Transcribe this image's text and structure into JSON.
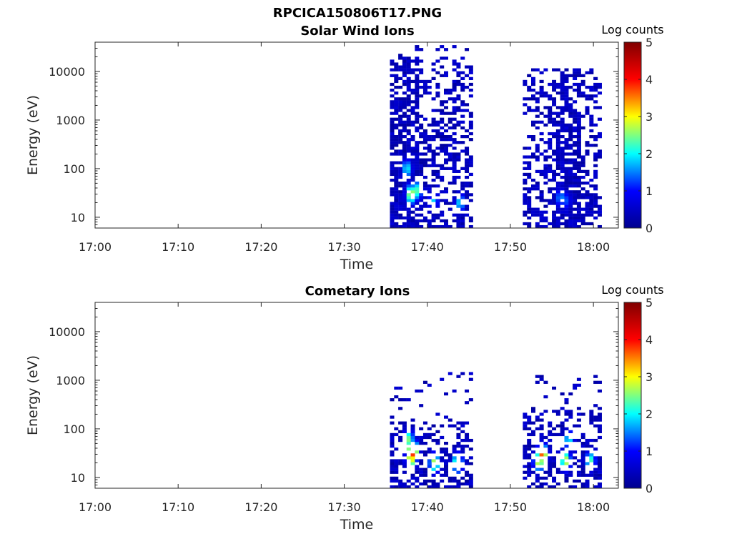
{
  "figure": {
    "title": "RPCICA150806T17.PNG"
  },
  "colormap": {
    "name": "jet",
    "stops": [
      "#00008f",
      "#0000ff",
      "#00ffff",
      "#ffff00",
      "#ff0000",
      "#800000"
    ]
  },
  "chart_data": [
    {
      "type": "heatmap",
      "title": "Solar Wind Ions",
      "xlabel": "Time",
      "ylabel": "Energy (eV)",
      "xlim": [
        "17:00",
        "18:03"
      ],
      "ylim": [
        6,
        40000
      ],
      "yscale": "log",
      "x_tick_labels": [
        "17:00",
        "17:10",
        "17:20",
        "17:30",
        "17:40",
        "17:50",
        "18:00"
      ],
      "y_tick_labels": [
        "10",
        "100",
        "1000",
        "10000"
      ],
      "colorbar": {
        "label": "Log counts",
        "min": 0,
        "max": 5,
        "tick_labels": [
          "0",
          "1",
          "2",
          "3",
          "4",
          "5"
        ]
      },
      "time_resolution_min": 0.5,
      "bursts": [
        {
          "start": "17:35.5",
          "end": "17:45.3",
          "dense_end": "17:38.5",
          "top_eV": 20000,
          "sparse_top_eV": 35000
        },
        {
          "start": "17:51.5",
          "end": "18:00.7",
          "dense_start": "17:55",
          "dense_end": "17:58",
          "top_eV": 12000
        }
      ],
      "hotspots": [
        {
          "time": "17:37.3",
          "energy_eV": 100,
          "log_counts": 2.0
        },
        {
          "time": "17:37.8",
          "energy_eV": 30,
          "log_counts": 2.9
        },
        {
          "time": "17:38.5",
          "energy_eV": 35,
          "log_counts": 2.3
        },
        {
          "time": "17:40.5",
          "energy_eV": 22,
          "log_counts": 1.8
        },
        {
          "time": "17:43.7",
          "energy_eV": 20,
          "log_counts": 1.9
        },
        {
          "time": "17:55.8",
          "energy_eV": 25,
          "log_counts": 1.6
        },
        {
          "time": "17:56.5",
          "energy_eV": 22,
          "log_counts": 1.3
        }
      ]
    },
    {
      "type": "heatmap",
      "title": "Cometary Ions",
      "xlabel": "Time",
      "ylabel": "Energy (eV)",
      "xlim": [
        "17:00",
        "18:03"
      ],
      "ylim": [
        6,
        40000
      ],
      "yscale": "log",
      "x_tick_labels": [
        "17:00",
        "17:10",
        "17:20",
        "17:30",
        "17:40",
        "17:50",
        "18:00"
      ],
      "y_tick_labels": [
        "10",
        "100",
        "1000",
        "10000"
      ],
      "colorbar": {
        "label": "Log counts",
        "min": 0,
        "max": 5,
        "tick_labels": [
          "0",
          "1",
          "2",
          "3",
          "4",
          "5"
        ]
      },
      "time_resolution_min": 0.5,
      "bursts": [
        {
          "start": "17:35.5",
          "end": "17:45.3",
          "top_eV": 150,
          "sparse_top_eV": 1500
        },
        {
          "start": "17:51.5",
          "end": "18:00.7",
          "top_eV": 300,
          "sparse_top_eV": 1200
        }
      ],
      "hotspots": [
        {
          "time": "17:37.5",
          "energy_eV": 60,
          "log_counts": 2.5
        },
        {
          "time": "17:38.0",
          "energy_eV": 35,
          "log_counts": 4.3
        },
        {
          "time": "17:37.8",
          "energy_eV": 25,
          "log_counts": 3.3
        },
        {
          "time": "17:40.6",
          "energy_eV": 20,
          "log_counts": 2.8
        },
        {
          "time": "17:43.4",
          "energy_eV": 20,
          "log_counts": 2.8
        },
        {
          "time": "17:53.2",
          "energy_eV": 22,
          "log_counts": 3.1
        },
        {
          "time": "17:53.6",
          "energy_eV": 30,
          "log_counts": 3.7
        },
        {
          "time": "17:56.4",
          "energy_eV": 22,
          "log_counts": 2.9
        },
        {
          "time": "17:56.8",
          "energy_eV": 60,
          "log_counts": 2.0
        },
        {
          "time": "17:59.4",
          "energy_eV": 22,
          "log_counts": 2.3
        }
      ]
    }
  ]
}
